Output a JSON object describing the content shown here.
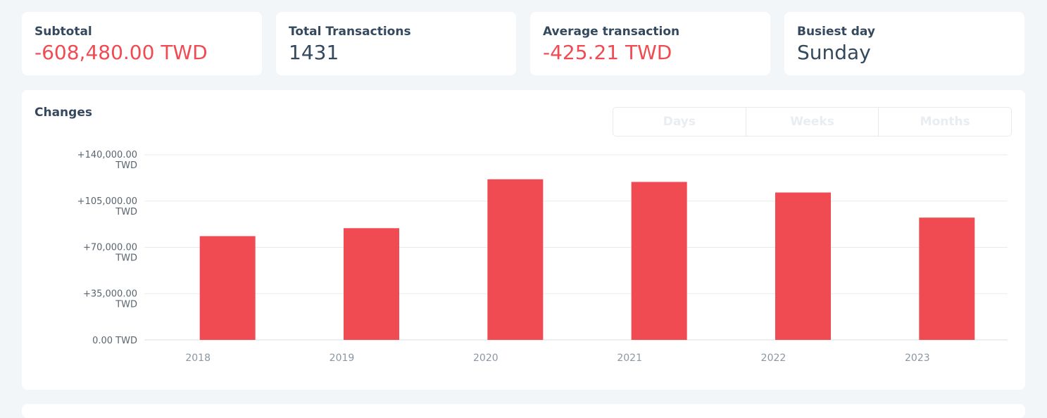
{
  "stats": [
    {
      "label": "Subtotal",
      "value": "-608,480.00 TWD",
      "tone": "neg"
    },
    {
      "label": "Total Transactions",
      "value": "1431",
      "tone": "neutral"
    },
    {
      "label": "Average transaction",
      "value": "-425.21 TWD",
      "tone": "neg"
    },
    {
      "label": "Busiest day",
      "value": "Sunday",
      "tone": "neutral"
    }
  ],
  "chart_card": {
    "title": "Changes",
    "period_options": [
      "Days",
      "Weeks",
      "Months"
    ]
  },
  "colors": {
    "negative": "#f04b53",
    "bar": "#f04b53",
    "text": "#34495e",
    "gridline": "#e8ebee"
  },
  "chart_data": {
    "type": "bar",
    "categories": [
      "2018",
      "2019",
      "2020",
      "2021",
      "2022",
      "2023"
    ],
    "values": [
      78500,
      84500,
      121500,
      119500,
      111500,
      92500
    ],
    "ylim": [
      0,
      140000
    ],
    "yticks": [
      {
        "value": 140000,
        "line1": "+140,000.00",
        "line2": "TWD"
      },
      {
        "value": 105000,
        "line1": "+105,000.00",
        "line2": "TWD"
      },
      {
        "value": 70000,
        "line1": "+70,000.00",
        "line2": "TWD"
      },
      {
        "value": 35000,
        "line1": "+35,000.00",
        "line2": "TWD"
      },
      {
        "value": 0,
        "line1": "0.00 TWD",
        "line2": ""
      }
    ],
    "grid": true
  }
}
